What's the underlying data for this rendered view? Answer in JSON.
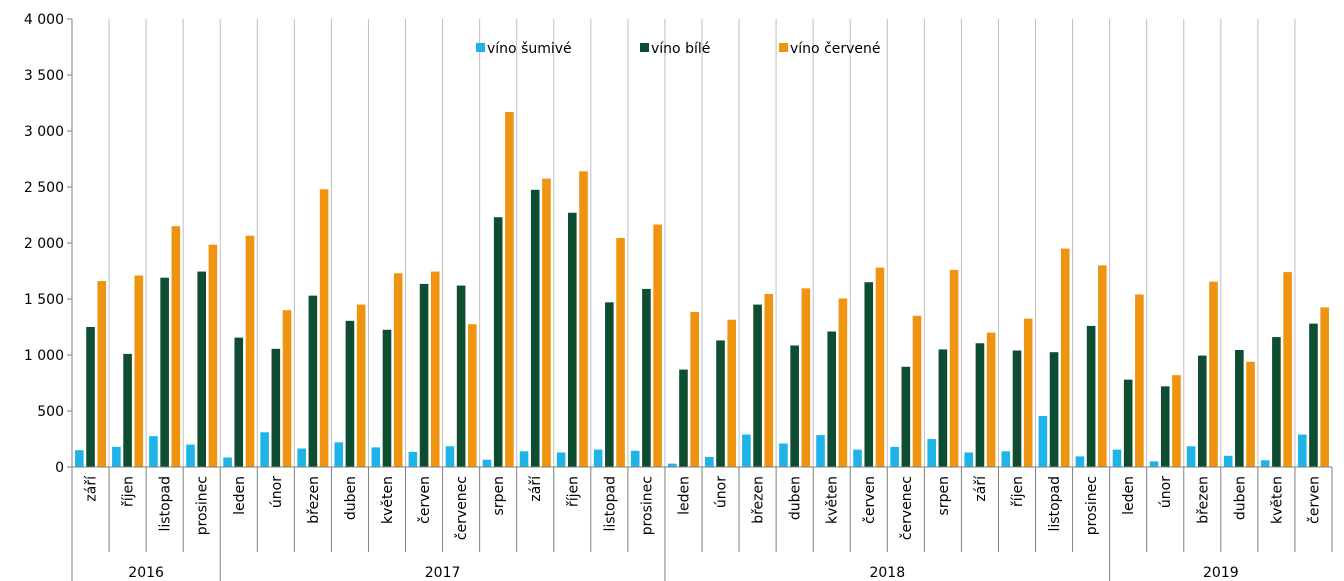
{
  "chart_data": {
    "type": "bar",
    "ylim": [
      0,
      4000
    ],
    "yticks": [
      0,
      500,
      1000,
      1500,
      2000,
      2500,
      3000,
      3500,
      4000
    ],
    "ytick_labels": [
      "0",
      "500",
      "1 000",
      "1 500",
      "2 000",
      "2 500",
      "3 000",
      "3 500",
      "4 000"
    ],
    "grid": "vertical separators between categories",
    "legend": "top-center",
    "categories": [
      "září",
      "říjen",
      "listopad",
      "prosinec",
      "leden",
      "únor",
      "březen",
      "duben",
      "květen",
      "červen",
      "červenec",
      "srpen",
      "září",
      "říjen",
      "listopad",
      "prosinec",
      "leden",
      "únor",
      "březen",
      "duben",
      "květen",
      "červen",
      "červenec",
      "srpen",
      "září",
      "říjen",
      "listopad",
      "prosinec",
      "leden",
      "únor",
      "březen",
      "duben",
      "květen",
      "červen"
    ],
    "groups": [
      {
        "label": "2016",
        "count": 4
      },
      {
        "label": "2017",
        "count": 12
      },
      {
        "label": "2018",
        "count": 12
      },
      {
        "label": "2019",
        "count": 6
      }
    ],
    "series": [
      {
        "name": "víno šumivé",
        "color": "#1fb4e8",
        "values": [
          150,
          180,
          275,
          200,
          85,
          310,
          165,
          220,
          175,
          135,
          185,
          65,
          140,
          130,
          155,
          145,
          30,
          90,
          290,
          210,
          285,
          155,
          180,
          250,
          130,
          140,
          455,
          95,
          155,
          50,
          185,
          100,
          60,
          290
        ]
      },
      {
        "name": "víno bílé",
        "color": "#0e4d32",
        "values": [
          1250,
          1010,
          1690,
          1745,
          1155,
          1055,
          1530,
          1305,
          1225,
          1635,
          1620,
          2230,
          2475,
          2270,
          1470,
          1590,
          870,
          1130,
          1450,
          1085,
          1210,
          1650,
          895,
          1050,
          1105,
          1040,
          1025,
          1260,
          780,
          720,
          995,
          1045,
          1160,
          1280
        ]
      },
      {
        "name": "víno červené",
        "color": "#ef9410",
        "values": [
          1660,
          1710,
          2150,
          1985,
          2065,
          1400,
          2480,
          1450,
          1730,
          1745,
          1275,
          3170,
          2575,
          2640,
          2045,
          2165,
          1385,
          1315,
          1545,
          1595,
          1505,
          1780,
          1350,
          1760,
          1200,
          1325,
          1950,
          1800,
          1540,
          820,
          1655,
          940,
          1740,
          1425
        ]
      }
    ]
  }
}
